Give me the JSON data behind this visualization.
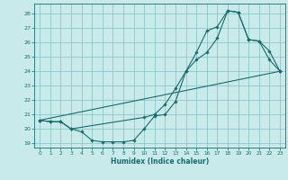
{
  "title": "",
  "xlabel": "Humidex (Indice chaleur)",
  "bg_color": "#c8eaea",
  "grid_color": "#7fbfbf",
  "line_color": "#1a6b6b",
  "marker_color": "#1a6b6b",
  "xlim": [
    -0.5,
    23.5
  ],
  "ylim": [
    18.7,
    28.7
  ],
  "yticks": [
    19,
    20,
    21,
    22,
    23,
    24,
    25,
    26,
    27,
    28
  ],
  "xticks": [
    0,
    1,
    2,
    3,
    4,
    5,
    6,
    7,
    8,
    9,
    10,
    11,
    12,
    13,
    14,
    15,
    16,
    17,
    18,
    19,
    20,
    21,
    22,
    23
  ],
  "line1_x": [
    0,
    1,
    2,
    3,
    4,
    5,
    6,
    7,
    8,
    9,
    10,
    11,
    12,
    13,
    14,
    15,
    16,
    17,
    18,
    19,
    20,
    21,
    22,
    23
  ],
  "line1_y": [
    20.6,
    20.5,
    20.5,
    20.0,
    19.8,
    19.2,
    19.1,
    19.1,
    19.1,
    19.2,
    20.0,
    20.9,
    21.0,
    21.9,
    24.0,
    25.3,
    26.8,
    27.1,
    28.2,
    28.1,
    26.2,
    26.1,
    25.4,
    24.0
  ],
  "line2_x": [
    0,
    1,
    2,
    3,
    10,
    11,
    12,
    13,
    14,
    15,
    16,
    17,
    18,
    19,
    20,
    21,
    22,
    23
  ],
  "line2_y": [
    20.6,
    20.5,
    20.5,
    20.0,
    20.8,
    21.0,
    21.7,
    22.8,
    24.0,
    24.8,
    25.3,
    26.3,
    28.2,
    28.1,
    26.2,
    26.1,
    24.8,
    24.0
  ],
  "line3_x": [
    0,
    23
  ],
  "line3_y": [
    20.6,
    24.0
  ]
}
